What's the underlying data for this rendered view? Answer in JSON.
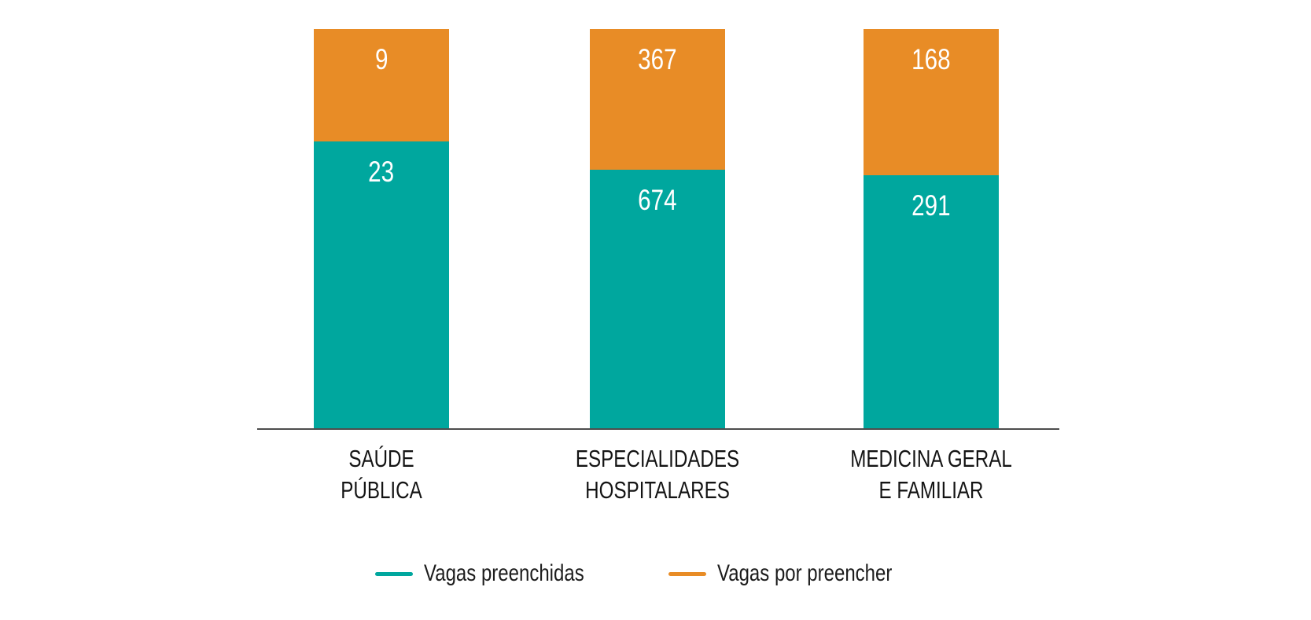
{
  "chart_data": {
    "type": "bar",
    "stacked": true,
    "normalized_to_100_percent": true,
    "title": "",
    "xlabel": "",
    "ylabel": "",
    "grid": false,
    "legend_position": "bottom",
    "categories": [
      "SAÚDE PÚBLICA",
      "ESPECIALIDADES HOSPITALARES",
      "MEDICINA GERAL E FAMILIAR"
    ],
    "category_lines": [
      [
        "SAÚDE",
        "PÚBLICA"
      ],
      [
        "ESPECIALIDADES",
        "HOSPITALARES"
      ],
      [
        "MEDICINA GERAL",
        "E FAMILIAR"
      ]
    ],
    "series": [
      {
        "name": "Vagas preenchidas",
        "color": "#00A79E",
        "values": [
          23,
          674,
          291
        ]
      },
      {
        "name": "Vagas por preencher",
        "color": "#E88C26",
        "values": [
          9,
          367,
          168
        ]
      }
    ],
    "value_label_color": "#FFFFFF",
    "axis_line_color": "#4D4D4D",
    "category_label_color": "#141414"
  }
}
